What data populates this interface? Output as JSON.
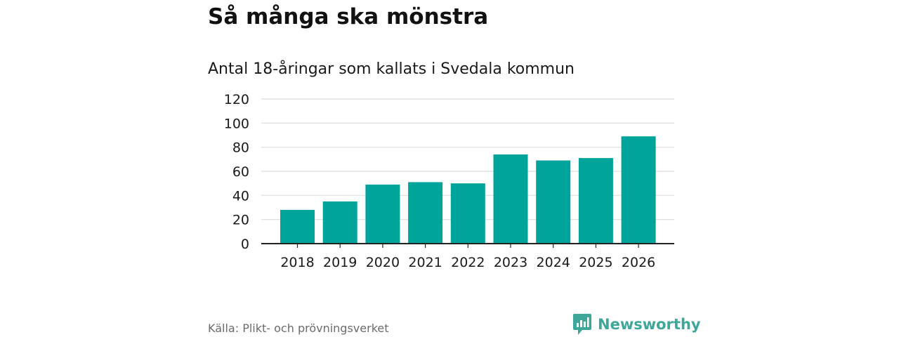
{
  "header": {
    "title": "Så många ska mönstra",
    "subtitle": "Antal 18-åringar som kallats i Svedala kommun"
  },
  "footer": {
    "source": "Källa: Plikt- och prövningsverket",
    "brand": "Newsworthy"
  },
  "colors": {
    "bar": "#00a49a",
    "brand": "#3fa79a",
    "grid": "#dddddd",
    "axis": "#222222",
    "text": "#1a1a1a"
  },
  "chart_data": {
    "type": "bar",
    "title": "Så många ska mönstra",
    "subtitle": "Antal 18-åringar som kallats i Svedala kommun",
    "xlabel": "",
    "ylabel": "",
    "categories": [
      "2018",
      "2019",
      "2020",
      "2021",
      "2022",
      "2023",
      "2024",
      "2025",
      "2026"
    ],
    "values": [
      28,
      35,
      49,
      51,
      50,
      74,
      69,
      71,
      89
    ],
    "ylim": [
      0,
      120
    ],
    "yticks": [
      0,
      20,
      40,
      60,
      80,
      100,
      120
    ],
    "grid": true,
    "legend": "none"
  }
}
